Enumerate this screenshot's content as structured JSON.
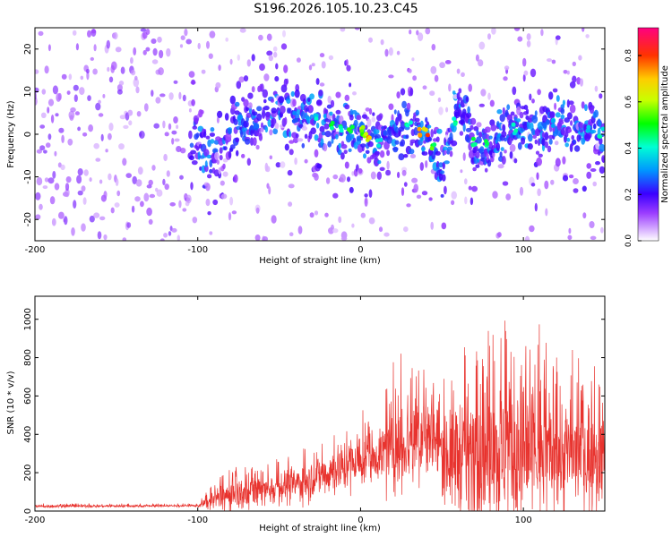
{
  "title": "S196.2026.105.10.23.C45",
  "chart_data": [
    {
      "type": "heatmap",
      "xlabel": "Height of straight line (km)",
      "ylabel": "Frequency (Hz)",
      "xlim": [
        -200,
        150
      ],
      "ylim": [
        -25,
        25
      ],
      "xticks": [
        -200,
        -100,
        0,
        100
      ],
      "yticks": [
        -20,
        -10,
        0,
        10,
        20
      ],
      "colorbar": {
        "label": "Normalized spectral amplitude",
        "range": [
          0,
          0.92
        ],
        "ticks": [
          0.0,
          0.2,
          0.4,
          0.6,
          0.8
        ],
        "tick_labels": [
          "0.0",
          "0.2",
          "0.4",
          "0.6",
          "0.8"
        ]
      },
      "ridge": {
        "description": "Frequency of strongest spectral content vs height",
        "x": [
          -110,
          -90,
          -70,
          -50,
          -30,
          -20,
          -10,
          0,
          10,
          20,
          30,
          40,
          45,
          50,
          55,
          60,
          70,
          80,
          90,
          100,
          110,
          120,
          130,
          150
        ],
        "y": [
          0,
          -5,
          3,
          5,
          4,
          2,
          1,
          1,
          -3,
          0,
          2,
          0,
          -4,
          -10,
          0,
          6,
          -2,
          -2,
          1,
          2,
          0,
          3,
          2,
          0
        ]
      }
    },
    {
      "type": "line",
      "xlabel": "Height of straight line (km)",
      "ylabel": "SNR (10 * v/v)",
      "xlim": [
        -200,
        150
      ],
      "ylim": [
        0,
        1120
      ],
      "xticks": [
        -200,
        -100,
        0,
        100
      ],
      "yticks": [
        0,
        200,
        400,
        600,
        800,
        1000
      ],
      "series": [
        {
          "name": "SNR",
          "color": "#e8332e",
          "envelope": {
            "x": [
              -200,
              -100,
              -95,
              -90,
              -80,
              -60,
              -40,
              -20,
              0,
              10,
              20,
              30,
              40,
              45,
              50,
              55,
              60,
              80,
              100,
              120,
              150
            ],
            "mean": [
              25,
              28,
              40,
              60,
              80,
              110,
              140,
              200,
              270,
              290,
              320,
              380,
              400,
              380,
              320,
              300,
              290,
              300,
              310,
              300,
              290
            ],
            "peak": [
              40,
              40,
              95,
              150,
              230,
              260,
              310,
              420,
              550,
              500,
              800,
              850,
              880,
              700,
              650,
              900,
              850,
              1000,
              1120,
              900,
              790
            ]
          }
        }
      ]
    }
  ]
}
